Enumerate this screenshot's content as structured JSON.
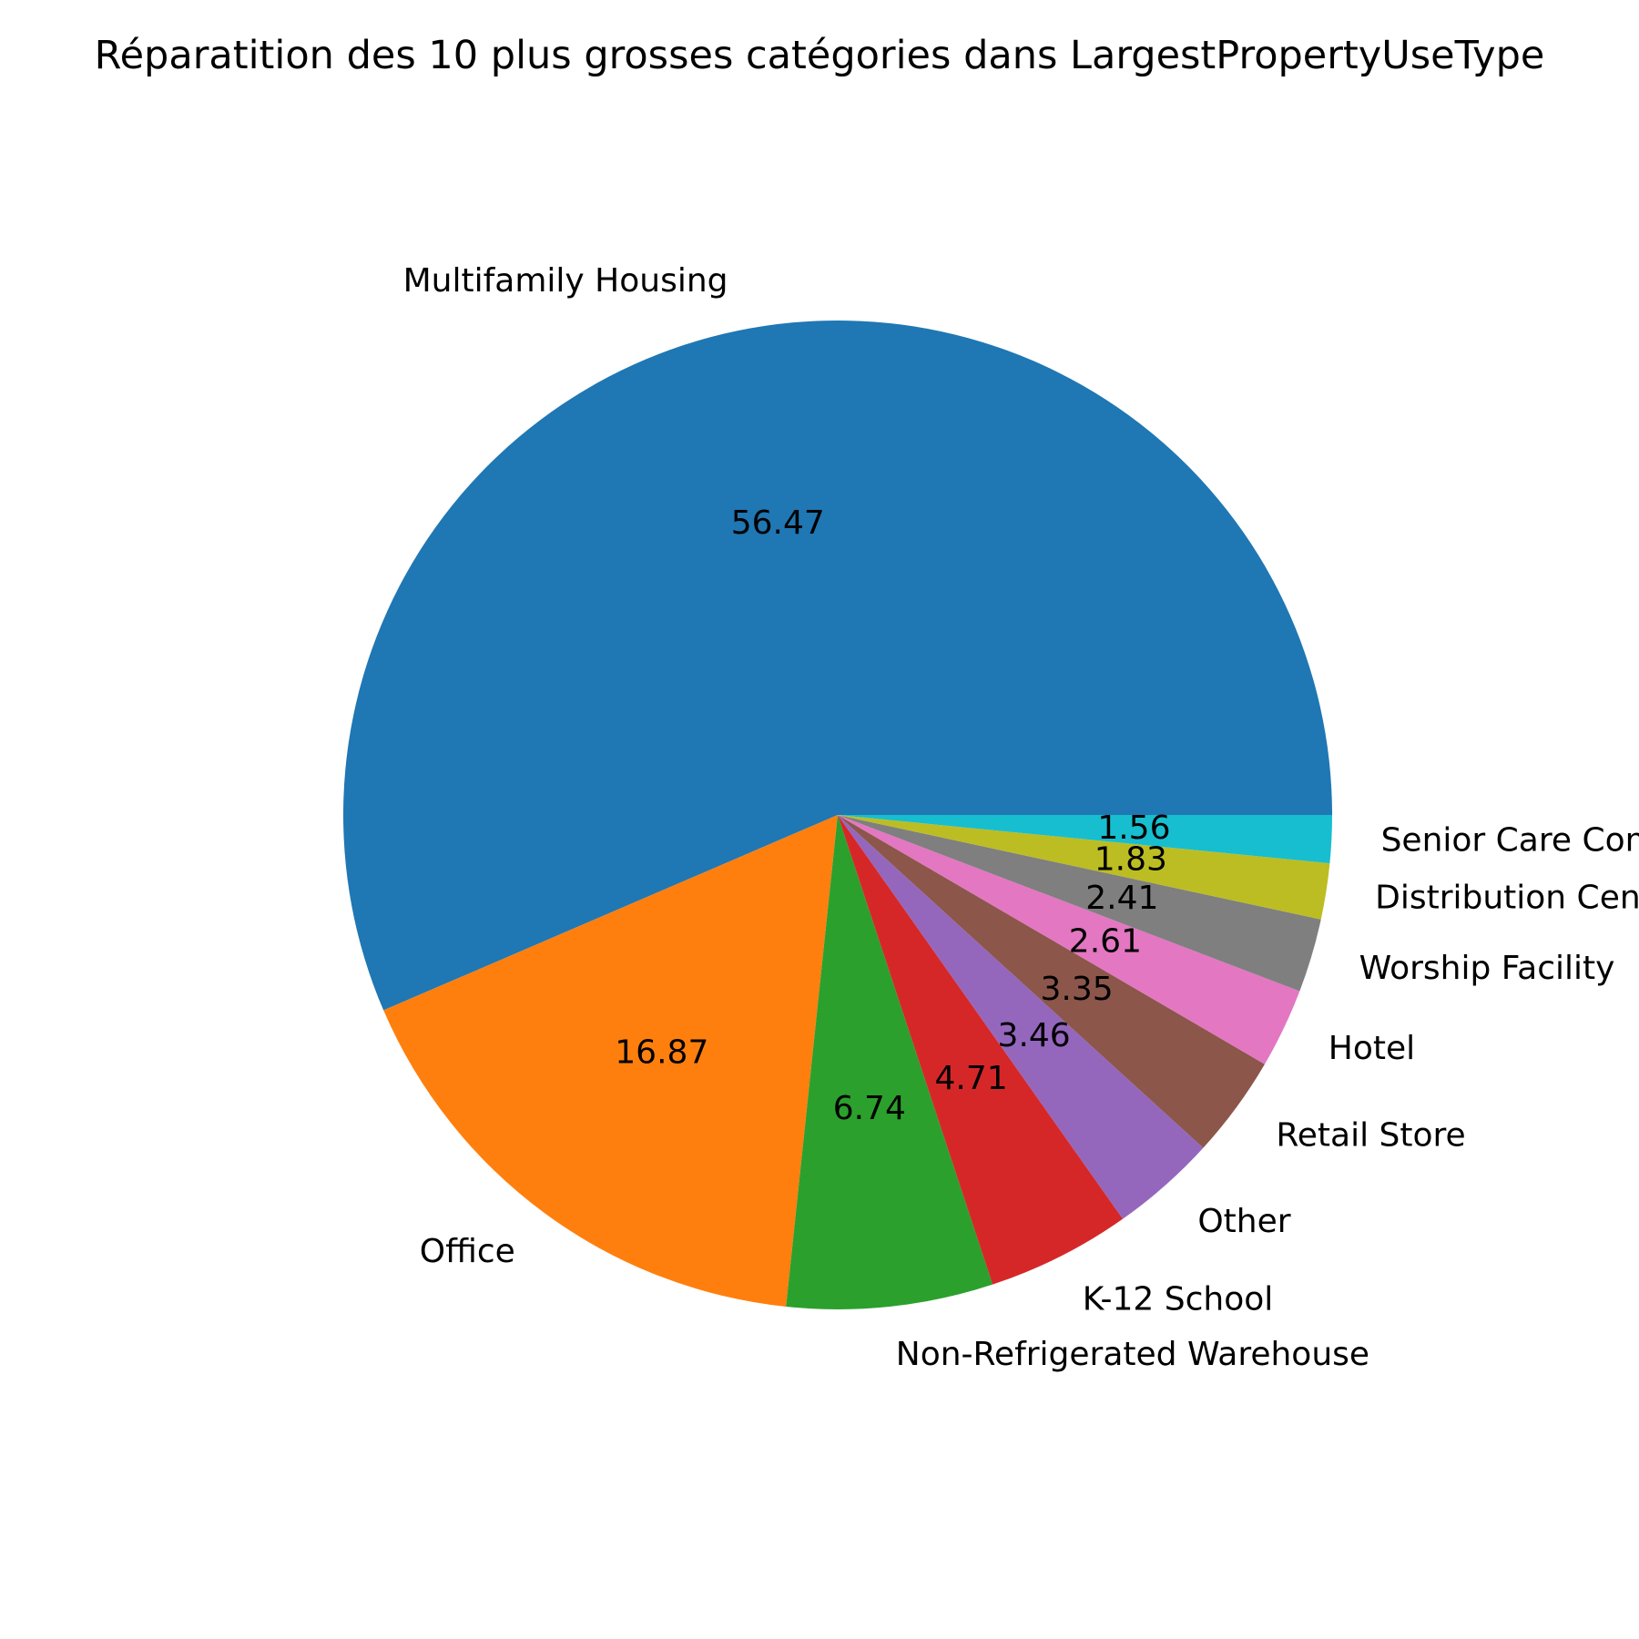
{
  "chart_data": {
    "type": "pie",
    "title": "Réparatition des 10 plus grosses catégories dans LargestPropertyUseType",
    "slices": [
      {
        "label": "Multifamily Housing",
        "value": 56.47,
        "value_label": "56.47",
        "color": "#1f77b4"
      },
      {
        "label": "Office",
        "value": 16.87,
        "value_label": "16.87",
        "color": "#ff7f0e"
      },
      {
        "label": "Non-Refrigerated Warehouse",
        "value": 6.74,
        "value_label": "6.74",
        "color": "#2ca02c"
      },
      {
        "label": "K-12 School",
        "value": 4.71,
        "value_label": "4.71",
        "color": "#d62728"
      },
      {
        "label": "Other",
        "value": 3.46,
        "value_label": "3.46",
        "color": "#9467bd"
      },
      {
        "label": "Retail Store",
        "value": 3.35,
        "value_label": "3.35",
        "color": "#8c564b"
      },
      {
        "label": "Hotel",
        "value": 2.61,
        "value_label": "2.61",
        "color": "#e377c2"
      },
      {
        "label": "Worship Facility",
        "value": 2.41,
        "value_label": "2.41",
        "color": "#7f7f7f"
      },
      {
        "label": "Distribution Center",
        "value": 1.83,
        "value_label": "1.83",
        "color": "#bcbd22"
      },
      {
        "label": "Senior Care Community",
        "value": 1.56,
        "value_label": "1.56",
        "color": "#17becf"
      }
    ],
    "start_angle_deg": 0,
    "direction": "counterclockwise",
    "legend": "none"
  }
}
